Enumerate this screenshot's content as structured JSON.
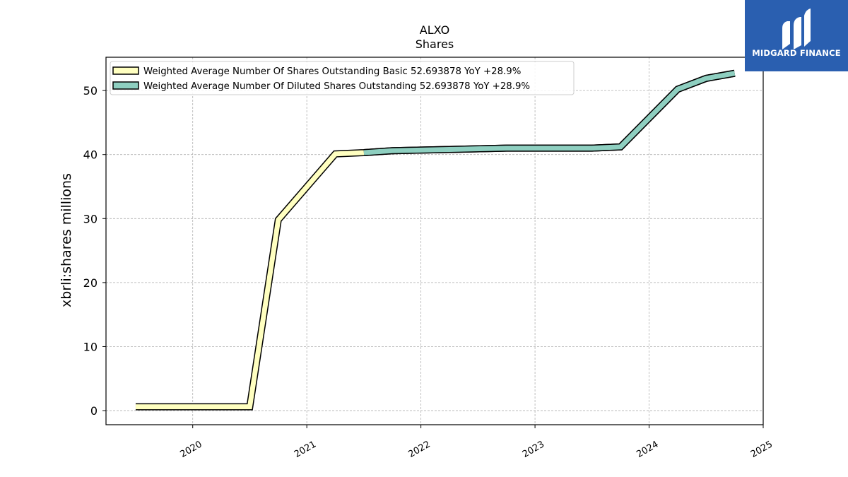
{
  "chart_data": {
    "type": "line",
    "title": "ALXO",
    "subtitle": "Shares",
    "ylabel": "xbrli:shares millions",
    "xlim": [
      2019.24,
      2025.0
    ],
    "ylim": [
      -2.2,
      55.2
    ],
    "yticks": [
      0,
      10,
      20,
      30,
      40,
      50
    ],
    "xticks": [
      2020,
      2021,
      2022,
      2023,
      2024,
      2025
    ],
    "grid": true,
    "legend_placement": "top-left",
    "series": [
      {
        "name": "Weighted Average Number Of Shares Outstanding Basic  52.693878 YoY +28.9%",
        "color": "#ffffc0",
        "x": [
          2019.5,
          2020.5,
          2020.75,
          2021.25,
          2021.5,
          2021.75,
          2022.25,
          2022.75,
          2023.5,
          2023.75,
          2024.25,
          2024.5,
          2024.75
        ],
        "y": [
          0.6,
          0.6,
          29.8,
          40.1,
          40.3,
          40.6,
          40.8,
          41.0,
          41.0,
          41.2,
          50.2,
          51.9,
          52.7
        ]
      },
      {
        "name": "Weighted Average Number Of Diluted Shares Outstanding  52.693878 YoY +28.9%",
        "color": "#8ecfc0",
        "x": [
          2021.5,
          2021.75,
          2022.25,
          2022.75,
          2023.5,
          2023.75,
          2024.25,
          2024.5,
          2024.75
        ],
        "y": [
          40.3,
          40.6,
          40.8,
          41.0,
          41.0,
          41.2,
          50.2,
          51.9,
          52.7
        ]
      }
    ]
  },
  "logo": {
    "text": "MIDGARD FINANCE",
    "bg_color": "#2a5fb0"
  }
}
